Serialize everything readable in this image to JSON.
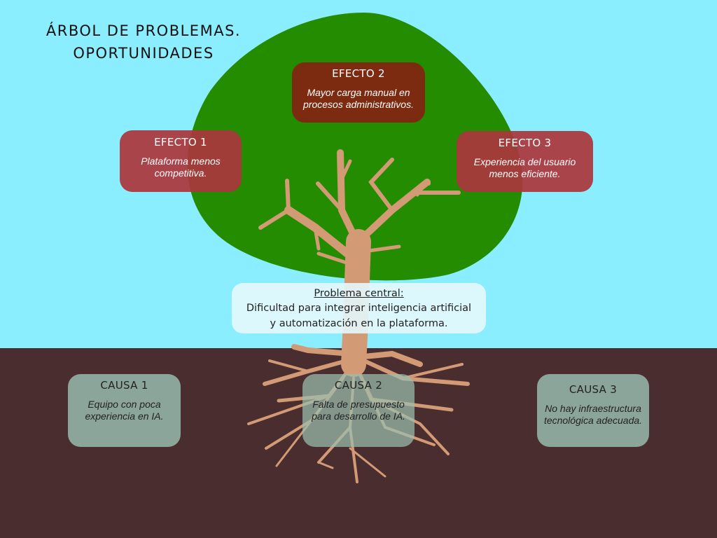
{
  "title": {
    "line1": "ÁRBOL DE PROBLEMAS.",
    "line2": "OPORTUNIDADES"
  },
  "effects": [
    {
      "heading": "EFECTO 1",
      "text": "Plataforma menos competitiva."
    },
    {
      "heading": "EFECTO 2",
      "text": "Mayor carga manual en procesos administrativos."
    },
    {
      "heading": "EFECTO 3",
      "text": "Experiencia del usuario menos eficiente."
    }
  ],
  "central_problem": {
    "heading": "Problema central:",
    "line1": "Dificultad para integrar inteligencia artificial",
    "line2": "y automatización en la plataforma."
  },
  "causes": [
    {
      "heading": "CAUSA 1",
      "text": "Equipo con poca experiencia en IA."
    },
    {
      "heading": "CAUSA 2",
      "text": "Falta de presupuesto para desarrollo de IA."
    },
    {
      "heading": "CAUSA 3",
      "text": "No hay infraestructura tecnológica adecuada."
    }
  ],
  "colors": {
    "sky": "#8aeefe",
    "ground": "#4a2d2e",
    "canopy": "#248c00",
    "trunk": "#d39a76",
    "effect_box": "#7c2a10",
    "cause_box": "#8ea99e"
  }
}
